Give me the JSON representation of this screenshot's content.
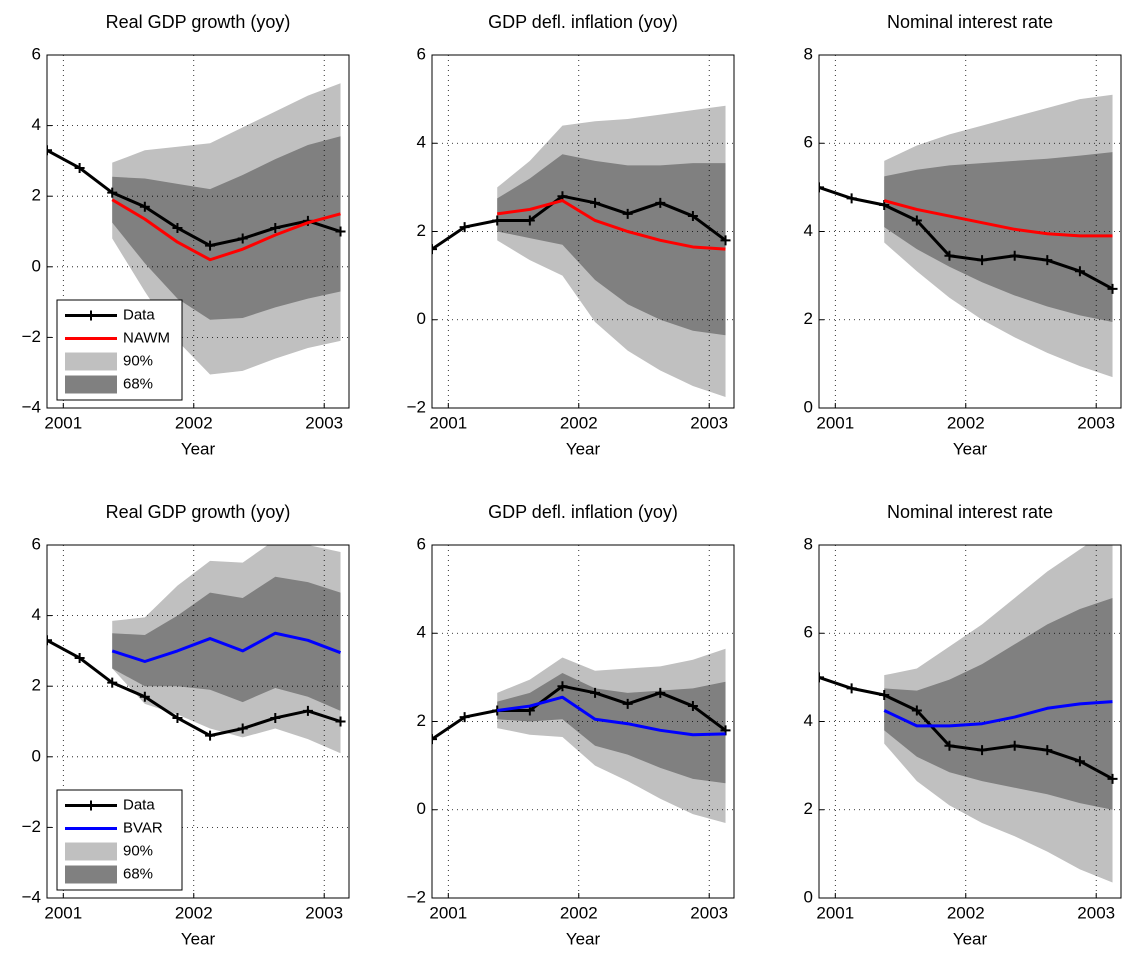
{
  "chart_data": [
    {
      "type": "line",
      "title": "Real GDP growth (yoy)",
      "xlabel": "Year",
      "x": [
        2000.875,
        2001.125,
        2001.375,
        2001.625,
        2001.875,
        2002.125,
        2002.375,
        2002.625,
        2002.875,
        2003.125
      ],
      "xlim": [
        2000.875,
        2003.19
      ],
      "xticks": [
        2001,
        2002,
        2003
      ],
      "ylim": [
        -4,
        6
      ],
      "yticks": [
        {
          "value": -4,
          "label": "−4"
        },
        {
          "value": -2,
          "label": "−2"
        },
        0,
        2,
        4,
        6
      ],
      "grid": true,
      "legend": "lower left",
      "series": [
        {
          "name": "Data",
          "color": "#000000",
          "marker": "+",
          "values": [
            3.3,
            2.8,
            2.1,
            1.7,
            1.1,
            0.6,
            0.8,
            1.1,
            1.3,
            1.0
          ]
        },
        {
          "name": "NAWM",
          "color": "#ff0000",
          "values": [
            null,
            null,
            1.9,
            1.35,
            0.7,
            0.2,
            0.5,
            0.9,
            1.25,
            1.5
          ]
        },
        {
          "name": "90%",
          "color": "#c0c0c0",
          "upper": [
            null,
            null,
            2.95,
            3.3,
            3.4,
            3.5,
            3.95,
            4.4,
            4.85,
            5.2
          ],
          "lower": [
            null,
            null,
            0.8,
            -0.7,
            -2.1,
            -3.05,
            -2.95,
            -2.6,
            -2.3,
            -2.1
          ]
        },
        {
          "name": "68%",
          "color": "#808080",
          "upper": [
            null,
            null,
            2.55,
            2.5,
            2.35,
            2.2,
            2.6,
            3.05,
            3.45,
            3.7
          ],
          "lower": [
            null,
            null,
            1.25,
            0.1,
            -0.9,
            -1.5,
            -1.45,
            -1.15,
            -0.9,
            -0.7
          ]
        }
      ]
    },
    {
      "type": "line",
      "title": "GDP defl. inflation (yoy)",
      "xlabel": "Year",
      "x": [
        2000.875,
        2001.125,
        2001.375,
        2001.625,
        2001.875,
        2002.125,
        2002.375,
        2002.625,
        2002.875,
        2003.125
      ],
      "xlim": [
        2000.875,
        2003.19
      ],
      "xticks": [
        2001,
        2002,
        2003
      ],
      "ylim": [
        -2,
        6
      ],
      "yticks": [
        {
          "value": -2,
          "label": "−2"
        },
        0,
        2,
        4,
        6
      ],
      "grid": true,
      "series": [
        {
          "color": "#000000",
          "marker": "+",
          "values": [
            1.6,
            2.1,
            2.25,
            2.25,
            2.8,
            2.65,
            2.4,
            2.65,
            2.35,
            1.8
          ]
        },
        {
          "color": "#ff0000",
          "values": [
            null,
            null,
            2.4,
            2.5,
            2.7,
            2.25,
            2.0,
            1.8,
            1.65,
            1.6
          ]
        },
        {
          "color": "#c0c0c0",
          "upper": [
            null,
            null,
            3.0,
            3.6,
            4.4,
            4.5,
            4.55,
            4.65,
            4.75,
            4.85
          ],
          "lower": [
            null,
            null,
            1.8,
            1.35,
            1.0,
            -0.05,
            -0.7,
            -1.15,
            -1.5,
            -1.75
          ]
        },
        {
          "color": "#808080",
          "upper": [
            null,
            null,
            2.75,
            3.2,
            3.75,
            3.6,
            3.5,
            3.5,
            3.55,
            3.55
          ],
          "lower": [
            null,
            null,
            2.0,
            1.85,
            1.7,
            0.9,
            0.35,
            0.0,
            -0.25,
            -0.35
          ]
        }
      ]
    },
    {
      "type": "line",
      "title": "Nominal interest rate",
      "xlabel": "Year",
      "x": [
        2000.875,
        2001.125,
        2001.375,
        2001.625,
        2001.875,
        2002.125,
        2002.375,
        2002.625,
        2002.875,
        2003.125
      ],
      "xlim": [
        2000.875,
        2003.19
      ],
      "xticks": [
        2001,
        2002,
        2003
      ],
      "ylim": [
        0,
        8
      ],
      "yticks": [
        0,
        2,
        4,
        6,
        8
      ],
      "grid": true,
      "series": [
        {
          "color": "#000000",
          "marker": "+",
          "values": [
            5.0,
            4.75,
            4.6,
            4.25,
            3.45,
            3.35,
            3.45,
            3.35,
            3.1,
            2.7
          ]
        },
        {
          "color": "#ff0000",
          "values": [
            null,
            null,
            4.7,
            4.5,
            4.35,
            4.2,
            4.05,
            3.95,
            3.9,
            3.9
          ]
        },
        {
          "color": "#c0c0c0",
          "upper": [
            null,
            null,
            5.6,
            5.95,
            6.2,
            6.4,
            6.6,
            6.8,
            7.0,
            7.1
          ],
          "lower": [
            null,
            null,
            3.75,
            3.1,
            2.5,
            2.0,
            1.6,
            1.25,
            0.95,
            0.7
          ]
        },
        {
          "color": "#808080",
          "upper": [
            null,
            null,
            5.25,
            5.4,
            5.5,
            5.55,
            5.6,
            5.65,
            5.72,
            5.8
          ],
          "lower": [
            null,
            null,
            4.1,
            3.6,
            3.2,
            2.85,
            2.55,
            2.3,
            2.1,
            1.95
          ]
        }
      ]
    },
    {
      "type": "line",
      "title": "Real GDP growth (yoy)",
      "xlabel": "Year",
      "x": [
        2000.875,
        2001.125,
        2001.375,
        2001.625,
        2001.875,
        2002.125,
        2002.375,
        2002.625,
        2002.875,
        2003.125
      ],
      "xlim": [
        2000.875,
        2003.19
      ],
      "xticks": [
        2001,
        2002,
        2003
      ],
      "ylim": [
        -4,
        6
      ],
      "yticks": [
        {
          "value": -4,
          "label": "−4"
        },
        {
          "value": -2,
          "label": "−2"
        },
        0,
        2,
        4,
        6
      ],
      "grid": true,
      "legend": "lower left",
      "series": [
        {
          "name": "Data",
          "color": "#000000",
          "marker": "+",
          "values": [
            3.3,
            2.8,
            2.1,
            1.7,
            1.1,
            0.6,
            0.8,
            1.1,
            1.3,
            1.0
          ]
        },
        {
          "name": "BVAR",
          "color": "#0000ff",
          "values": [
            null,
            null,
            3.0,
            2.7,
            3.0,
            3.35,
            3.0,
            3.5,
            3.3,
            2.95
          ]
        },
        {
          "name": "90%",
          "color": "#c0c0c0",
          "upper": [
            null,
            null,
            3.85,
            3.95,
            4.85,
            5.55,
            5.5,
            6.15,
            6.0,
            5.8
          ],
          "lower": [
            null,
            null,
            2.5,
            1.5,
            1.2,
            0.8,
            0.55,
            0.8,
            0.5,
            0.1
          ]
        },
        {
          "name": "68%",
          "color": "#808080",
          "upper": [
            null,
            null,
            3.5,
            3.45,
            4.0,
            4.65,
            4.5,
            5.1,
            4.95,
            4.65
          ],
          "lower": [
            null,
            null,
            2.5,
            2.0,
            2.0,
            1.9,
            1.55,
            1.95,
            1.7,
            1.3
          ]
        }
      ]
    },
    {
      "type": "line",
      "title": "GDP defl. inflation (yoy)",
      "xlabel": "Year",
      "x": [
        2000.875,
        2001.125,
        2001.375,
        2001.625,
        2001.875,
        2002.125,
        2002.375,
        2002.625,
        2002.875,
        2003.125
      ],
      "xlim": [
        2000.875,
        2003.19
      ],
      "xticks": [
        2001,
        2002,
        2003
      ],
      "ylim": [
        -2,
        6
      ],
      "yticks": [
        {
          "value": -2,
          "label": "−2"
        },
        0,
        2,
        4,
        6
      ],
      "grid": true,
      "series": [
        {
          "color": "#000000",
          "marker": "+",
          "values": [
            1.6,
            2.1,
            2.25,
            2.25,
            2.8,
            2.65,
            2.4,
            2.65,
            2.35,
            1.8
          ]
        },
        {
          "color": "#0000ff",
          "values": [
            null,
            null,
            2.25,
            2.35,
            2.55,
            2.05,
            1.95,
            1.8,
            1.7,
            1.72
          ]
        },
        {
          "color": "#c0c0c0",
          "upper": [
            null,
            null,
            2.65,
            2.95,
            3.45,
            3.15,
            3.2,
            3.25,
            3.4,
            3.65
          ],
          "lower": [
            null,
            null,
            1.85,
            1.7,
            1.65,
            1.0,
            0.65,
            0.25,
            -0.1,
            -0.3
          ]
        },
        {
          "color": "#808080",
          "upper": [
            null,
            null,
            2.45,
            2.65,
            3.1,
            2.75,
            2.65,
            2.7,
            2.75,
            2.9
          ],
          "lower": [
            null,
            null,
            2.05,
            2.0,
            2.05,
            1.45,
            1.25,
            0.95,
            0.7,
            0.6
          ]
        }
      ]
    },
    {
      "type": "line",
      "title": "Nominal interest rate",
      "xlabel": "Year",
      "x": [
        2000.875,
        2001.125,
        2001.375,
        2001.625,
        2001.875,
        2002.125,
        2002.375,
        2002.625,
        2002.875,
        2003.125
      ],
      "xlim": [
        2000.875,
        2003.19
      ],
      "xticks": [
        2001,
        2002,
        2003
      ],
      "ylim": [
        0,
        8
      ],
      "yticks": [
        0,
        2,
        4,
        6,
        8
      ],
      "grid": true,
      "series": [
        {
          "color": "#000000",
          "marker": "+",
          "values": [
            5.0,
            4.75,
            4.6,
            4.25,
            3.45,
            3.35,
            3.45,
            3.35,
            3.1,
            2.7
          ]
        },
        {
          "color": "#0000ff",
          "values": [
            null,
            null,
            4.25,
            3.9,
            3.9,
            3.95,
            4.1,
            4.3,
            4.4,
            4.45
          ]
        },
        {
          "color": "#c0c0c0",
          "upper": [
            null,
            null,
            5.05,
            5.2,
            5.7,
            6.2,
            6.8,
            7.4,
            7.9,
            8.4
          ],
          "lower": [
            null,
            null,
            3.5,
            2.65,
            2.1,
            1.7,
            1.4,
            1.05,
            0.65,
            0.35
          ]
        },
        {
          "color": "#808080",
          "upper": [
            null,
            null,
            4.75,
            4.7,
            4.95,
            5.3,
            5.75,
            6.2,
            6.55,
            6.8
          ],
          "lower": [
            null,
            null,
            3.8,
            3.2,
            2.85,
            2.65,
            2.5,
            2.35,
            2.15,
            2.0
          ]
        }
      ]
    }
  ]
}
